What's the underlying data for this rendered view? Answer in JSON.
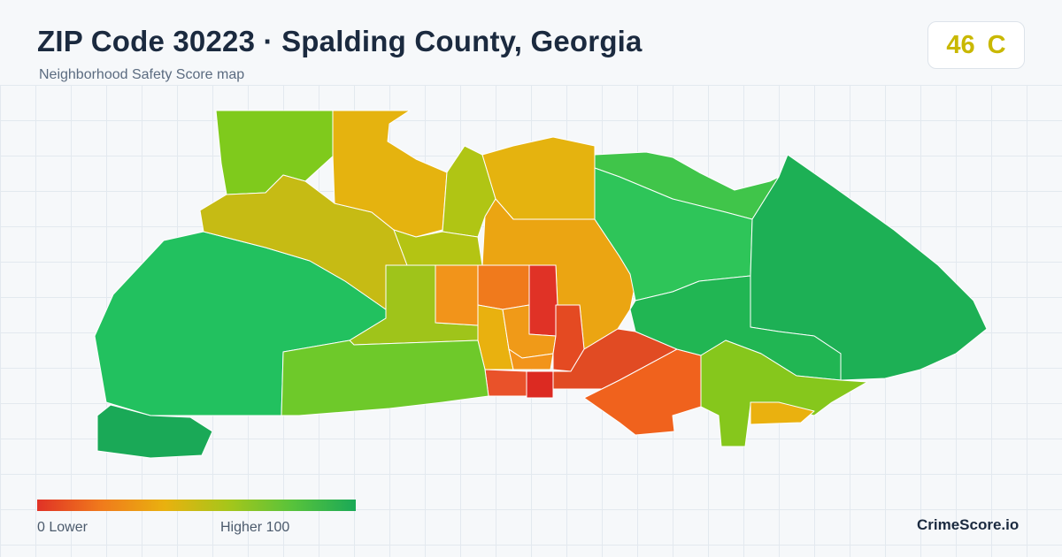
{
  "header": {
    "title": "ZIP Code 30223 · Spalding County, Georgia",
    "subtitle": "Neighborhood Safety Score map"
  },
  "score": {
    "value": "46",
    "grade": "C",
    "color": "#c9b800"
  },
  "legend": {
    "low_label": "0  Lower",
    "high_label": "Higher  100",
    "scale_min": 0,
    "scale_max": 100,
    "gradient_colors": [
      "#e03226",
      "#f07a1c",
      "#e9b10f",
      "#a6c61a",
      "#58c33b",
      "#1aa957"
    ]
  },
  "brand": "CrimeScore.io"
}
